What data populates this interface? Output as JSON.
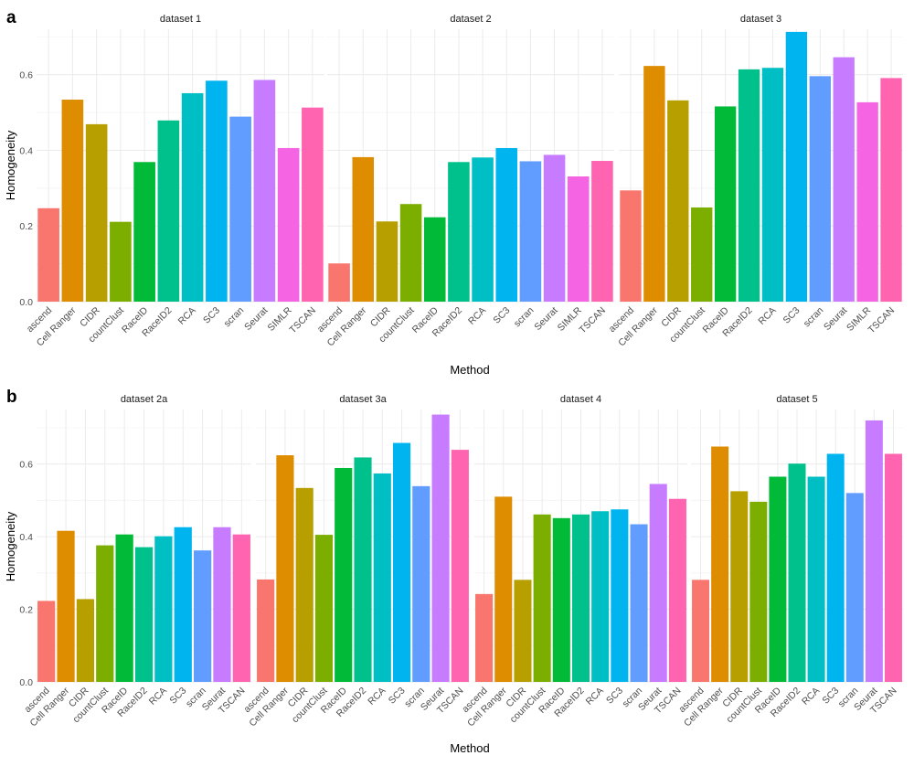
{
  "figure": {
    "colors": {
      "ascend": "#F8766D",
      "Cell Ranger": "#DE8C00",
      "CIDR": "#B79F00",
      "countClust": "#7CAE00",
      "RaceID": "#00BA38",
      "RaceID2": "#00C08B",
      "RCA": "#00BFC4",
      "SC3": "#00B4F0",
      "scran": "#619CFF",
      "Seurat": "#C77CFF",
      "SIMLR": "#F564E3",
      "TSCAN": "#FF64B0"
    }
  },
  "chart_data": [
    {
      "panel": "a",
      "type": "bar",
      "xlabel": "Method",
      "ylabel": "Homogeneity",
      "ylim": [
        0,
        0.72
      ],
      "yticks": [
        "0.0",
        "0.2",
        "0.4",
        "0.6"
      ],
      "grid": true,
      "categories": [
        "ascend",
        "Cell Ranger",
        "CIDR",
        "countClust",
        "RaceID",
        "RaceID2",
        "RCA",
        "SC3",
        "scran",
        "Seurat",
        "SIMLR",
        "TSCAN"
      ],
      "facets": [
        {
          "title": "dataset 1",
          "values": [
            0.247,
            0.534,
            0.469,
            0.211,
            0.369,
            0.479,
            0.551,
            0.584,
            0.489,
            0.586,
            0.406,
            0.513
          ]
        },
        {
          "title": "dataset 2",
          "values": [
            0.101,
            0.382,
            0.212,
            0.258,
            0.223,
            0.369,
            0.381,
            0.406,
            0.371,
            0.388,
            0.331,
            0.372
          ]
        },
        {
          "title": "dataset 3",
          "values": [
            0.294,
            0.623,
            0.532,
            0.249,
            0.516,
            0.614,
            0.618,
            0.713,
            0.596,
            0.646,
            0.527,
            0.591
          ]
        }
      ]
    },
    {
      "panel": "b",
      "type": "bar",
      "xlabel": "Method",
      "ylabel": "Homogeneity",
      "ylim": [
        0,
        0.75
      ],
      "yticks": [
        "0.0",
        "0.2",
        "0.4",
        "0.6"
      ],
      "grid": true,
      "categories": [
        "ascend",
        "Cell Ranger",
        "CIDR",
        "countClust",
        "RaceID",
        "RaceID2",
        "RCA",
        "SC3",
        "scran",
        "Seurat",
        "TSCAN"
      ],
      "facets": [
        {
          "title": "dataset 2a",
          "values": [
            0.223,
            0.416,
            0.228,
            0.376,
            0.406,
            0.371,
            0.401,
            0.426,
            0.362,
            0.426,
            0.406
          ]
        },
        {
          "title": "dataset 3a",
          "values": [
            0.282,
            0.624,
            0.534,
            0.405,
            0.589,
            0.618,
            0.574,
            0.658,
            0.539,
            0.736,
            0.639
          ]
        },
        {
          "title": "dataset 4",
          "values": [
            0.242,
            0.51,
            0.281,
            0.461,
            0.451,
            0.461,
            0.47,
            0.475,
            0.434,
            0.545,
            0.504
          ]
        },
        {
          "title": "dataset 5",
          "values": [
            0.281,
            0.648,
            0.525,
            0.496,
            0.565,
            0.601,
            0.565,
            0.628,
            0.52,
            0.72,
            0.628
          ]
        }
      ]
    }
  ]
}
